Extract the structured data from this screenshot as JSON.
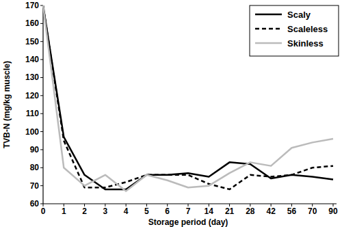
{
  "chart_data": {
    "type": "line",
    "x_label": "Storage period (day)",
    "y_label": "TVB-N (mg/kg muscle)",
    "categories": [
      "0",
      "1",
      "2",
      "3",
      "4",
      "5",
      "6",
      "7",
      "14",
      "21",
      "28",
      "42",
      "56",
      "70",
      "90"
    ],
    "ylim": [
      60,
      170
    ],
    "yticks": [
      60,
      70,
      80,
      90,
      100,
      110,
      120,
      130,
      140,
      150,
      160,
      170
    ],
    "grid": false,
    "legend": "top-right",
    "series": [
      {
        "name": "Scaly",
        "color": "#000000",
        "line_style": "solid",
        "marker": "none",
        "values": [
          170,
          97,
          76,
          68,
          68,
          76,
          76,
          77,
          75,
          83,
          82,
          74,
          76,
          75,
          73.5
        ]
      },
      {
        "name": "Scaleless",
        "color": "#000000",
        "line_style": "dashed",
        "marker": "none",
        "values": [
          170,
          95,
          69,
          69,
          72,
          76,
          76,
          76,
          71,
          68,
          76,
          75,
          76,
          80,
          81
        ]
      },
      {
        "name": "Skinless",
        "color": "#bbbbbb",
        "line_style": "solid",
        "marker": "none",
        "values": [
          170,
          80,
          70,
          76,
          67,
          76,
          73,
          69,
          70,
          77,
          83,
          81,
          91,
          94,
          96
        ]
      }
    ]
  }
}
